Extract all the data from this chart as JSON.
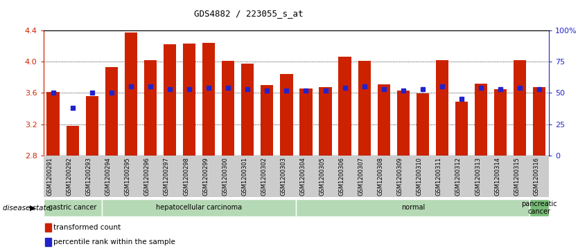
{
  "title": "GDS4882 / 223055_s_at",
  "samples": [
    "GSM1200291",
    "GSM1200292",
    "GSM1200293",
    "GSM1200294",
    "GSM1200295",
    "GSM1200296",
    "GSM1200297",
    "GSM1200298",
    "GSM1200299",
    "GSM1200300",
    "GSM1200301",
    "GSM1200302",
    "GSM1200303",
    "GSM1200304",
    "GSM1200305",
    "GSM1200306",
    "GSM1200307",
    "GSM1200308",
    "GSM1200309",
    "GSM1200310",
    "GSM1200311",
    "GSM1200312",
    "GSM1200313",
    "GSM1200314",
    "GSM1200315",
    "GSM1200316"
  ],
  "bar_values": [
    3.61,
    3.18,
    3.56,
    3.93,
    4.37,
    4.02,
    4.22,
    4.23,
    4.24,
    4.01,
    3.97,
    3.7,
    3.84,
    3.66,
    3.67,
    4.06,
    4.01,
    3.71,
    3.63,
    3.59,
    4.02,
    3.49,
    3.72,
    3.65,
    4.02,
    3.67
  ],
  "percentile_values": [
    50,
    38,
    50,
    50,
    55,
    55,
    53,
    53,
    54,
    54,
    53,
    52,
    52,
    52,
    52,
    54,
    55,
    53,
    52,
    53,
    55,
    45,
    54,
    53,
    54,
    53
  ],
  "bar_color": "#cc2200",
  "dot_color": "#2222cc",
  "ymin": 2.8,
  "ymax": 4.4,
  "y2min": 0,
  "y2max": 100,
  "yticks": [
    2.8,
    3.2,
    3.6,
    4.0,
    4.4
  ],
  "y2ticks": [
    0,
    25,
    50,
    75,
    100
  ],
  "y2ticklabels": [
    "0",
    "25",
    "50",
    "75",
    "100%"
  ],
  "disease_groups": [
    {
      "label": "gastric cancer",
      "start": 0,
      "end": 2,
      "color": "#b5d9b5"
    },
    {
      "label": "hepatocellular carcinoma",
      "start": 3,
      "end": 12,
      "color": "#b5d9b5"
    },
    {
      "label": "normal",
      "start": 13,
      "end": 24,
      "color": "#b5d9b5"
    },
    {
      "label": "pancreatic\ncancer",
      "start": 25,
      "end": 25,
      "color": "#77bb77"
    }
  ],
  "legend_items": [
    {
      "color": "#cc2200",
      "marker": "s",
      "label": "transformed count"
    },
    {
      "color": "#2222cc",
      "marker": "s",
      "label": "percentile rank within the sample"
    }
  ],
  "disease_state_label": "disease state",
  "xticklabel_bg": "#cccccc"
}
